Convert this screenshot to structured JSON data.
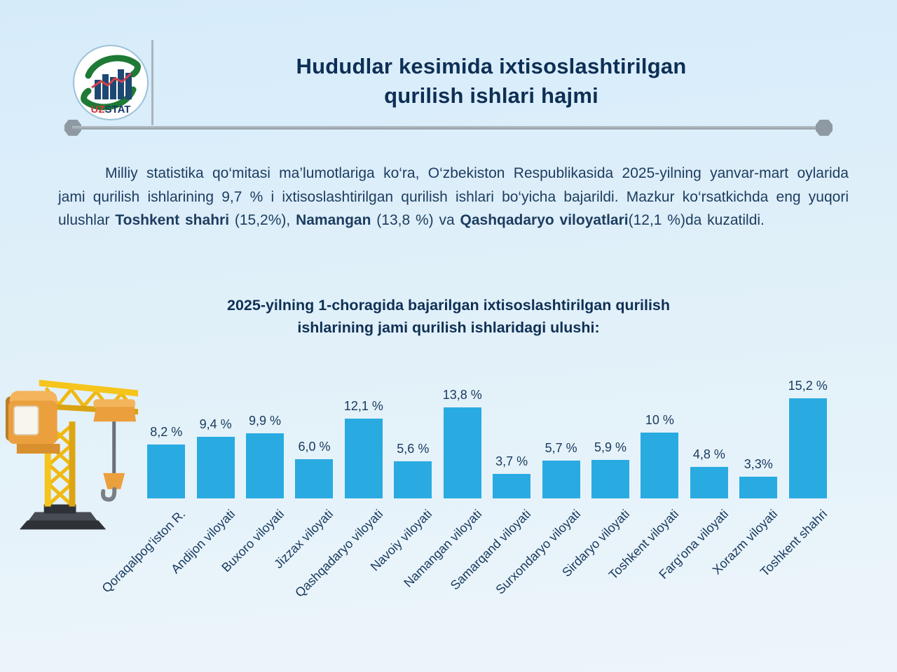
{
  "header": {
    "title_lines": [
      "Hududlar kesimida ixtisoslashtirilgan",
      "qurilish ishlari hajmi"
    ],
    "logo": {
      "brand_uz": "UZ",
      "brand_stat": "STAT"
    }
  },
  "intro": {
    "segments": [
      {
        "text": "Milliy statistika qo‘mitasi ma’lumotlariga ko‘ra, O‘zbekiston Respublikasida 2025-yilning yanvar-mart oylarida jami qurilish ishlarining 9,7 % i ixtisoslashtirilgan qurilish ishlari bo‘yicha bajarildi. Mazkur ko‘rsatkichda eng yuqori ulushlar ",
        "bold": false
      },
      {
        "text": "Toshkent shahri",
        "bold": true
      },
      {
        "text": " (15,2%), ",
        "bold": false
      },
      {
        "text": "Namangan",
        "bold": true
      },
      {
        "text": " (13,8 %) va ",
        "bold": false
      },
      {
        "text": "Qashqadaryo viloyatlari",
        "bold": true
      },
      {
        "text": "(12,1 %)da kuzatildi.",
        "bold": false
      }
    ]
  },
  "chart_data": {
    "type": "bar",
    "title": "2025-yilning 1-choragida bajarilgan ixtisoslashtirilgan qurilish ishlarining jami qurilish ishlaridagi ulushi:",
    "title_lines": [
      "2025-yilning 1-choragida bajarilgan ixtisoslashtirilgan qurilish",
      "ishlarining jami qurilish ishlaridagi ulushi:"
    ],
    "categories": [
      "Qoraqalpog‘iston R.",
      "Andijon viloyati",
      "Buxoro viloyati",
      "Jizzax viloyati",
      "Qashqadaryo viloyati",
      "Navoiy viloyati",
      "Namangan viloyati",
      "Samarqand viloyati",
      "Surxondaryo viloyati",
      "Sirdaryo viloyati",
      "Toshkent viloyati",
      "Farg‘ona viloyati",
      "Xorazm viloyati",
      "Toshkent shahri"
    ],
    "values": [
      8.2,
      9.4,
      9.9,
      6.0,
      12.1,
      5.6,
      13.8,
      3.7,
      5.7,
      5.9,
      10,
      4.8,
      3.3,
      15.2
    ],
    "value_labels": [
      "8,2 %",
      "9,4 %",
      "9,9 %",
      "6,0 %",
      "12,1 %",
      "5,6 %",
      "13,8 %",
      "3,7 %",
      "5,7 %",
      "5,9 %",
      "10 %",
      "4,8 %",
      "3,3%",
      "15,2 %"
    ],
    "unit": "%",
    "ylim": [
      0,
      16
    ],
    "grid": false,
    "legend": "none",
    "bar_color": "#29abe2",
    "label_color": "#17395d",
    "xlabel": "",
    "ylabel": ""
  },
  "icons": {
    "logo": "uzstat-logo",
    "crane": "construction-crane-illustration",
    "divider_caps": "hexagon-end-caps"
  },
  "colors": {
    "accent_blue": "#29abe2",
    "navy_text": "#0d2f55",
    "divider_gray": "#919ca4",
    "background_top": "#d6ebfa",
    "background_bottom": "#edf5fa",
    "logo_green": "#1e7a34",
    "logo_red": "#d5353c"
  }
}
